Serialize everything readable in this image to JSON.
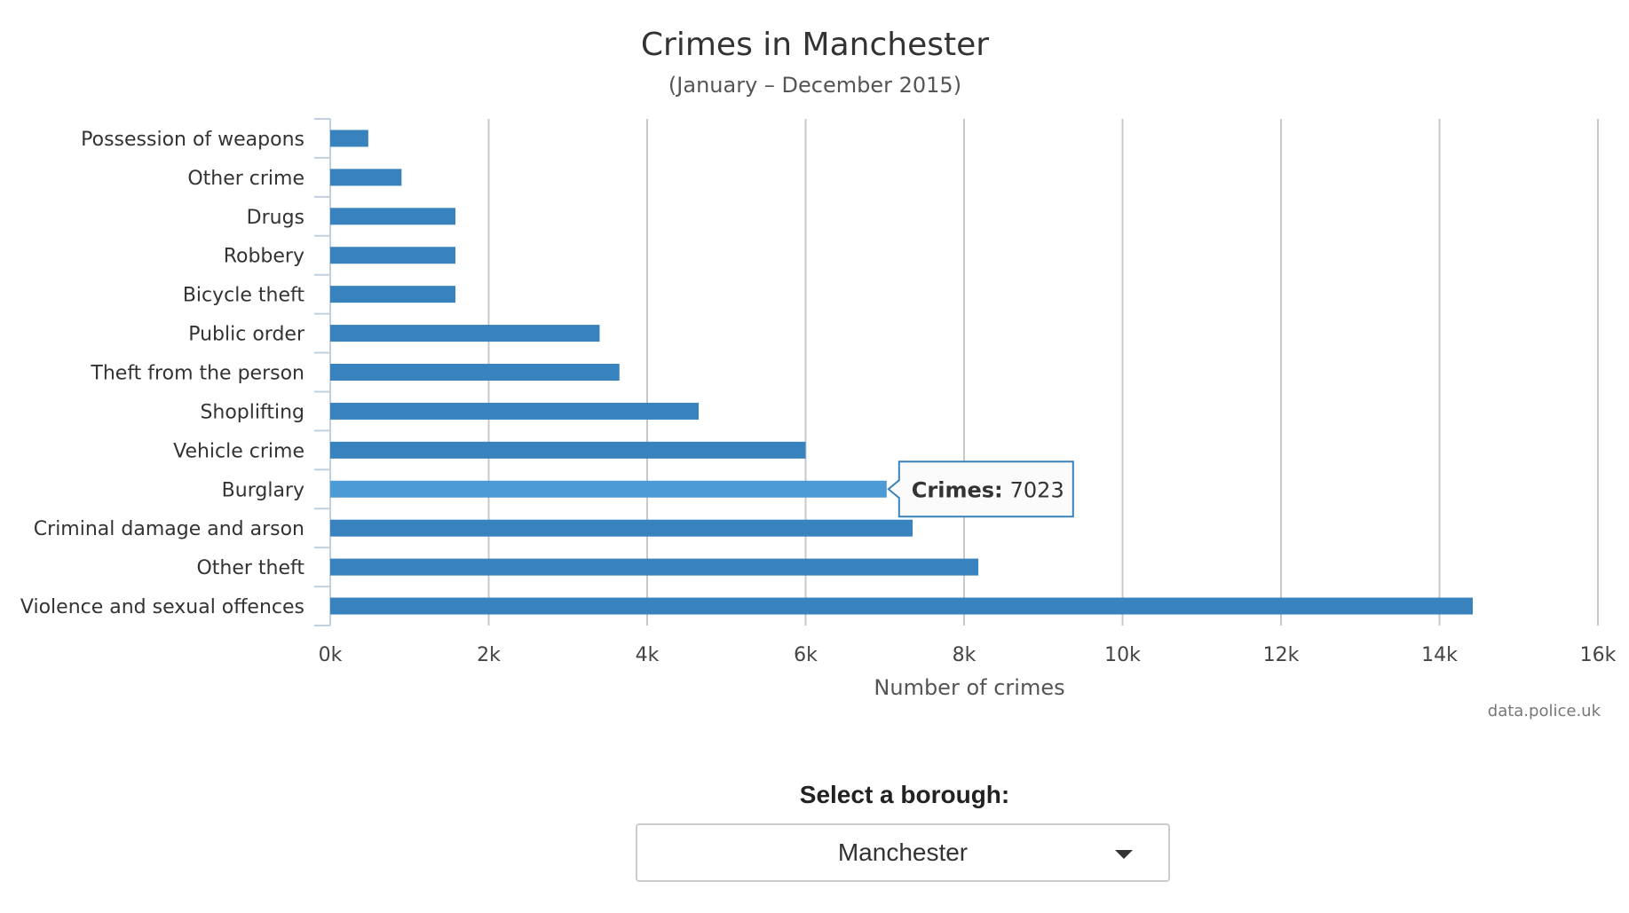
{
  "chart_data": {
    "type": "bar",
    "orientation": "horizontal",
    "title": "Crimes in Manchester",
    "subtitle": "(January – December 2015)",
    "xlabel": "Number of crimes",
    "ylabel": "",
    "categories": [
      "Possession of weapons",
      "Other crime",
      "Drugs",
      "Robbery",
      "Bicycle theft",
      "Public order",
      "Theft from the person",
      "Shoplifting",
      "Vehicle crime",
      "Burglary",
      "Criminal damage and arson",
      "Other theft",
      "Violence and sexual offences"
    ],
    "series": [
      {
        "values": [
          480,
          900,
          1580,
          1580,
          1580,
          3400,
          3650,
          4650,
          6000,
          7023,
          7350,
          8180,
          14420
        ]
      }
    ],
    "xlim": [
      0,
      16000
    ],
    "xticks": [
      0,
      2000,
      4000,
      6000,
      8000,
      10000,
      12000,
      14000,
      16000
    ],
    "xtick_labels": [
      "0k",
      "2k",
      "4k",
      "6k",
      "8k",
      "10k",
      "12k",
      "14k",
      "16k"
    ],
    "grid": "vertical",
    "bar_color": "#3882be",
    "highlight_color": "#4c9bd6",
    "tooltip": {
      "category_index": 9,
      "key": "Crimes:",
      "value": "7023"
    },
    "credit": "data.police.uk"
  },
  "selector": {
    "label": "Select a borough:",
    "value": "Manchester"
  }
}
